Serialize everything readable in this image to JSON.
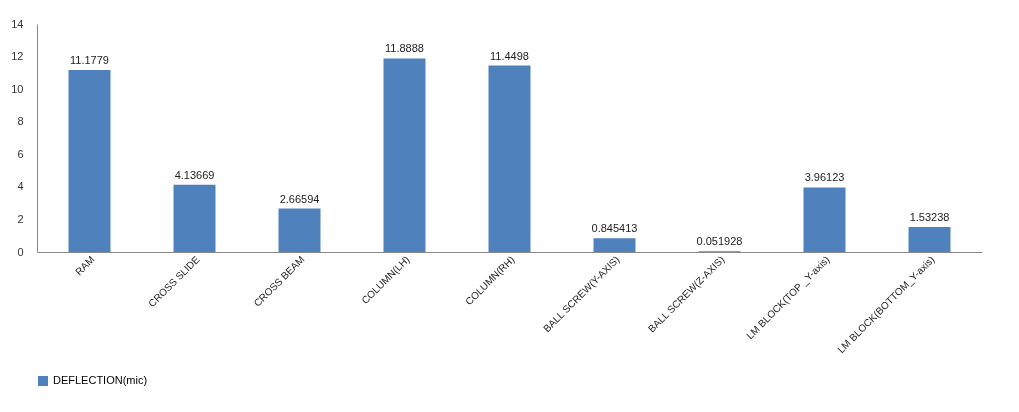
{
  "chart_data": {
    "type": "bar",
    "categories": [
      "RAM",
      "CROSS SLIDE",
      "CROSS BEAM",
      "COLUMN(LH)",
      "COLUMN(RH)",
      "BALL SCREW(Y-AXIS)",
      "BALL SCREW(Z-AXIS)",
      "LM BLOCK(TOP _Y-axis)",
      "LM BLOCK(BOTTOM_Y-axis)"
    ],
    "series": [
      {
        "name": "DEFLECTION(mic)",
        "color": "#4f81bd",
        "values": [
          11.1779,
          4.13669,
          2.66594,
          11.8888,
          11.4498,
          0.845413,
          0.051928,
          3.96123,
          1.53238
        ]
      }
    ],
    "ylim": [
      0,
      14
    ],
    "yticks": [
      0,
      2,
      4,
      6,
      8,
      10,
      12,
      14
    ],
    "grid": false,
    "legend": "bottom",
    "data_labels": true
  }
}
